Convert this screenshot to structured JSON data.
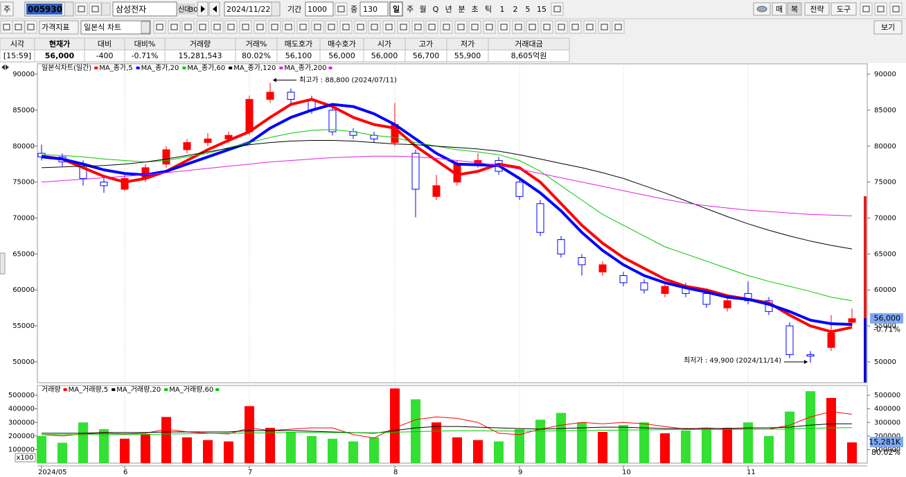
{
  "toolbar": {
    "market": "주",
    "code": "005930",
    "name": "삼성전자",
    "flags": [
      "신",
      "대",
      "30"
    ],
    "date": "2024/11/22",
    "period_label": "기간",
    "period": "1000",
    "count_label": "중",
    "count": "130",
    "intervals": [
      "일",
      "주",
      "월",
      "Q",
      "년",
      "분",
      "초",
      "틱",
      "1",
      "2",
      "5",
      "15"
    ],
    "right_buttons": [
      "매",
      "복",
      "전략",
      "도구"
    ],
    "indicator": "가격지표",
    "chart_style": "일본식 차트",
    "view": "보기"
  },
  "quote": {
    "headers": [
      "시각",
      "현재가",
      "대비",
      "대비%",
      "거래량",
      "거래%",
      "매도호가",
      "매수호가",
      "시가",
      "고가",
      "저가",
      "거래대금"
    ],
    "values": [
      "[15:59]",
      "56,000",
      "-400",
      "-0.71%",
      "15,281,543",
      "80.02%",
      "56,100",
      "56,000",
      "56,000",
      "56,700",
      "55,900",
      "8,605억원"
    ]
  },
  "chart_data": [
    {
      "type": "candlestick",
      "title": "일본식차트(일간)",
      "categories": [
        "2024/05",
        null,
        null,
        null,
        "6",
        null,
        null,
        null,
        null,
        null,
        "7",
        null,
        null,
        null,
        null,
        null,
        null,
        "8",
        null,
        null,
        null,
        null,
        null,
        "9",
        null,
        null,
        null,
        null,
        "10",
        null,
        null,
        null,
        null,
        null,
        "11",
        null,
        null,
        null,
        null,
        null
      ],
      "open": [
        79000,
        78500,
        77500,
        75000,
        74000,
        75500,
        77500,
        79500,
        80500,
        81000,
        82000,
        86500,
        87500,
        86500,
        85000,
        82000,
        81500,
        80500,
        79000,
        73000,
        75000,
        77500,
        78000,
        75000,
        72000,
        67000,
        64500,
        62500,
        62000,
        61000,
        59500,
        60500,
        59500,
        57500,
        59500,
        58500,
        55000,
        51000,
        52000,
        55500
      ],
      "high": [
        80200,
        79000,
        78000,
        75800,
        76000,
        77500,
        80000,
        81000,
        81800,
        82000,
        87000,
        88800,
        88000,
        87000,
        85500,
        82500,
        82000,
        86000,
        79500,
        76000,
        78000,
        79000,
        78500,
        75500,
        72500,
        67500,
        65000,
        64000,
        62500,
        61500,
        61200,
        61000,
        60000,
        59000,
        61200,
        59000,
        55500,
        51500,
        56500,
        57400
      ],
      "low": [
        78000,
        77200,
        74500,
        73500,
        73800,
        75000,
        77000,
        79000,
        80000,
        80500,
        81500,
        86000,
        86000,
        84500,
        81500,
        81000,
        80500,
        80000,
        70100,
        72500,
        74500,
        77000,
        76000,
        72500,
        67500,
        64500,
        62000,
        62000,
        60500,
        59500,
        59000,
        59000,
        57500,
        57000,
        58000,
        56500,
        50500,
        49900,
        51500,
        55000
      ],
      "close": [
        78500,
        77800,
        75500,
        74500,
        75500,
        77000,
        79500,
        80500,
        81000,
        81500,
        86500,
        87500,
        86500,
        85000,
        82000,
        81500,
        81000,
        83000,
        74000,
        74500,
        77500,
        78000,
        76500,
        73000,
        68000,
        65000,
        63500,
        63500,
        61000,
        60000,
        60500,
        59500,
        58000,
        58500,
        58500,
        57000,
        51000,
        50800,
        54000,
        56000
      ],
      "up_color": "#ff0000",
      "down_color": "#0000ff",
      "series": [
        {
          "name": "MA_종가,5",
          "color": "#ff0000",
          "width": 4,
          "values": [
            78600,
            78200,
            77000,
            75800,
            75000,
            75500,
            76500,
            78000,
            79500,
            80800,
            82000,
            84000,
            85800,
            86500,
            85500,
            84000,
            83000,
            82500,
            80000,
            78000,
            76000,
            76500,
            77500,
            77000,
            75000,
            72000,
            69000,
            66500,
            64500,
            63000,
            61500,
            60500,
            60000,
            59200,
            58700,
            58200,
            56500,
            55000,
            54200,
            54800
          ]
        },
        {
          "name": "MA_종가,20",
          "color": "#0000ff",
          "width": 4,
          "values": [
            78500,
            78200,
            77500,
            76700,
            76200,
            76000,
            76500,
            77500,
            78500,
            79500,
            80500,
            82500,
            84000,
            85000,
            85800,
            85500,
            84500,
            83000,
            81000,
            79000,
            77500,
            77400,
            77300,
            75500,
            73500,
            71000,
            68000,
            65500,
            63500,
            62000,
            61000,
            60300,
            59700,
            59000,
            58700,
            58000,
            57000,
            55800,
            55300,
            55200
          ]
        },
        {
          "name": "MA_종가,60",
          "color": "#00c800",
          "width": 1,
          "values": [
            78800,
            78700,
            78500,
            78200,
            78000,
            77800,
            78000,
            78500,
            79000,
            79800,
            80500,
            81200,
            81800,
            82200,
            82300,
            82000,
            81500,
            81200,
            80500,
            80000,
            79500,
            79200,
            78800,
            78000,
            76500,
            74500,
            72500,
            70500,
            69000,
            67500,
            66000,
            65000,
            64000,
            63000,
            62000,
            61200,
            60500,
            59800,
            59000,
            58500
          ]
        },
        {
          "name": "MA_종가,120",
          "color": "#000000",
          "width": 1,
          "values": [
            77000,
            77100,
            77200,
            77300,
            77500,
            77800,
            78200,
            78700,
            79200,
            79700,
            80200,
            80500,
            80700,
            80800,
            80800,
            80700,
            80500,
            80300,
            80200,
            80000,
            79800,
            79600,
            79300,
            78800,
            78200,
            77600,
            77000,
            76300,
            75500,
            74500,
            73500,
            72400,
            71300,
            70200,
            69200,
            68300,
            67500,
            66800,
            66200,
            65700
          ]
        },
        {
          "name": "MA_종가,200",
          "color": "#e020e0",
          "width": 1,
          "values": [
            75000,
            75200,
            75400,
            75600,
            75800,
            76000,
            76300,
            76600,
            76900,
            77200,
            77500,
            77800,
            78000,
            78200,
            78400,
            78500,
            78600,
            78600,
            78500,
            78300,
            78000,
            77700,
            77300,
            76800,
            76200,
            75600,
            75000,
            74400,
            73800,
            73200,
            72600,
            72100,
            71700,
            71400,
            71100,
            70900,
            70700,
            70500,
            70400,
            70300
          ]
        }
      ],
      "ylim": [
        47100,
        91450
      ],
      "yticks": [
        50000,
        55000,
        60000,
        65000,
        70000,
        75000,
        80000,
        85000,
        90000
      ],
      "high_annotation": "최고가 : 88,800 (2024/07/11)",
      "low_annotation": "최저가 : 49,900 (2024/11/14)",
      "current_label": "56,000",
      "change_label": "-0.71%",
      "xgrid": true
    },
    {
      "type": "bar",
      "title": "거래량",
      "values": [
        200000,
        150000,
        300000,
        250000,
        180000,
        210000,
        340000,
        190000,
        170000,
        160000,
        420000,
        260000,
        230000,
        200000,
        180000,
        160000,
        190000,
        550000,
        470000,
        300000,
        190000,
        170000,
        160000,
        250000,
        320000,
        370000,
        300000,
        230000,
        280000,
        300000,
        220000,
        240000,
        250000,
        260000,
        300000,
        200000,
        380000,
        530000,
        480000,
        152815
      ],
      "up_color": "#ff0000",
      "down_color": "#33e033",
      "series": [
        {
          "name": "MA_거래량,5",
          "color": "#ff0000",
          "width": 1,
          "values": [
            210000,
            200000,
            215000,
            220000,
            215000,
            220000,
            250000,
            230000,
            220000,
            215000,
            260000,
            240000,
            250000,
            260000,
            260000,
            210000,
            185000,
            260000,
            320000,
            340000,
            330000,
            300000,
            220000,
            210000,
            250000,
            280000,
            300000,
            290000,
            300000,
            290000,
            270000,
            250000,
            260000,
            250000,
            250000,
            250000,
            280000,
            340000,
            380000,
            360000
          ]
        },
        {
          "name": "MA_거래량,20",
          "color": "#000000",
          "width": 1,
          "values": [
            220000,
            220000,
            220000,
            225000,
            225000,
            225000,
            230000,
            230000,
            230000,
            230000,
            240000,
            240000,
            240000,
            235000,
            230000,
            225000,
            220000,
            240000,
            260000,
            270000,
            270000,
            265000,
            260000,
            255000,
            250000,
            255000,
            260000,
            265000,
            265000,
            260000,
            255000,
            255000,
            255000,
            255000,
            260000,
            260000,
            265000,
            280000,
            290000,
            290000
          ]
        },
        {
          "name": "MA_거래량,60",
          "color": "#00c800",
          "width": 1,
          "values": [
            210000,
            210000,
            210000,
            210000,
            210000,
            212000,
            214000,
            216000,
            218000,
            220000,
            222000,
            224000,
            226000,
            226000,
            225000,
            224000,
            223000,
            228000,
            232000,
            236000,
            238000,
            238000,
            237000,
            236000,
            236000,
            238000,
            240000,
            242000,
            244000,
            245000,
            246000,
            247000,
            248000,
            248000,
            249000,
            250000,
            252000,
            256000,
            260000,
            262000
          ]
        }
      ],
      "ylim": [
        0,
        572000
      ],
      "yticks": [
        100000,
        200000,
        300000,
        400000,
        500000
      ],
      "unit_label": "x100",
      "current_label": "15,281K",
      "ratio_label": "80.02%",
      "xgrid": true
    }
  ]
}
